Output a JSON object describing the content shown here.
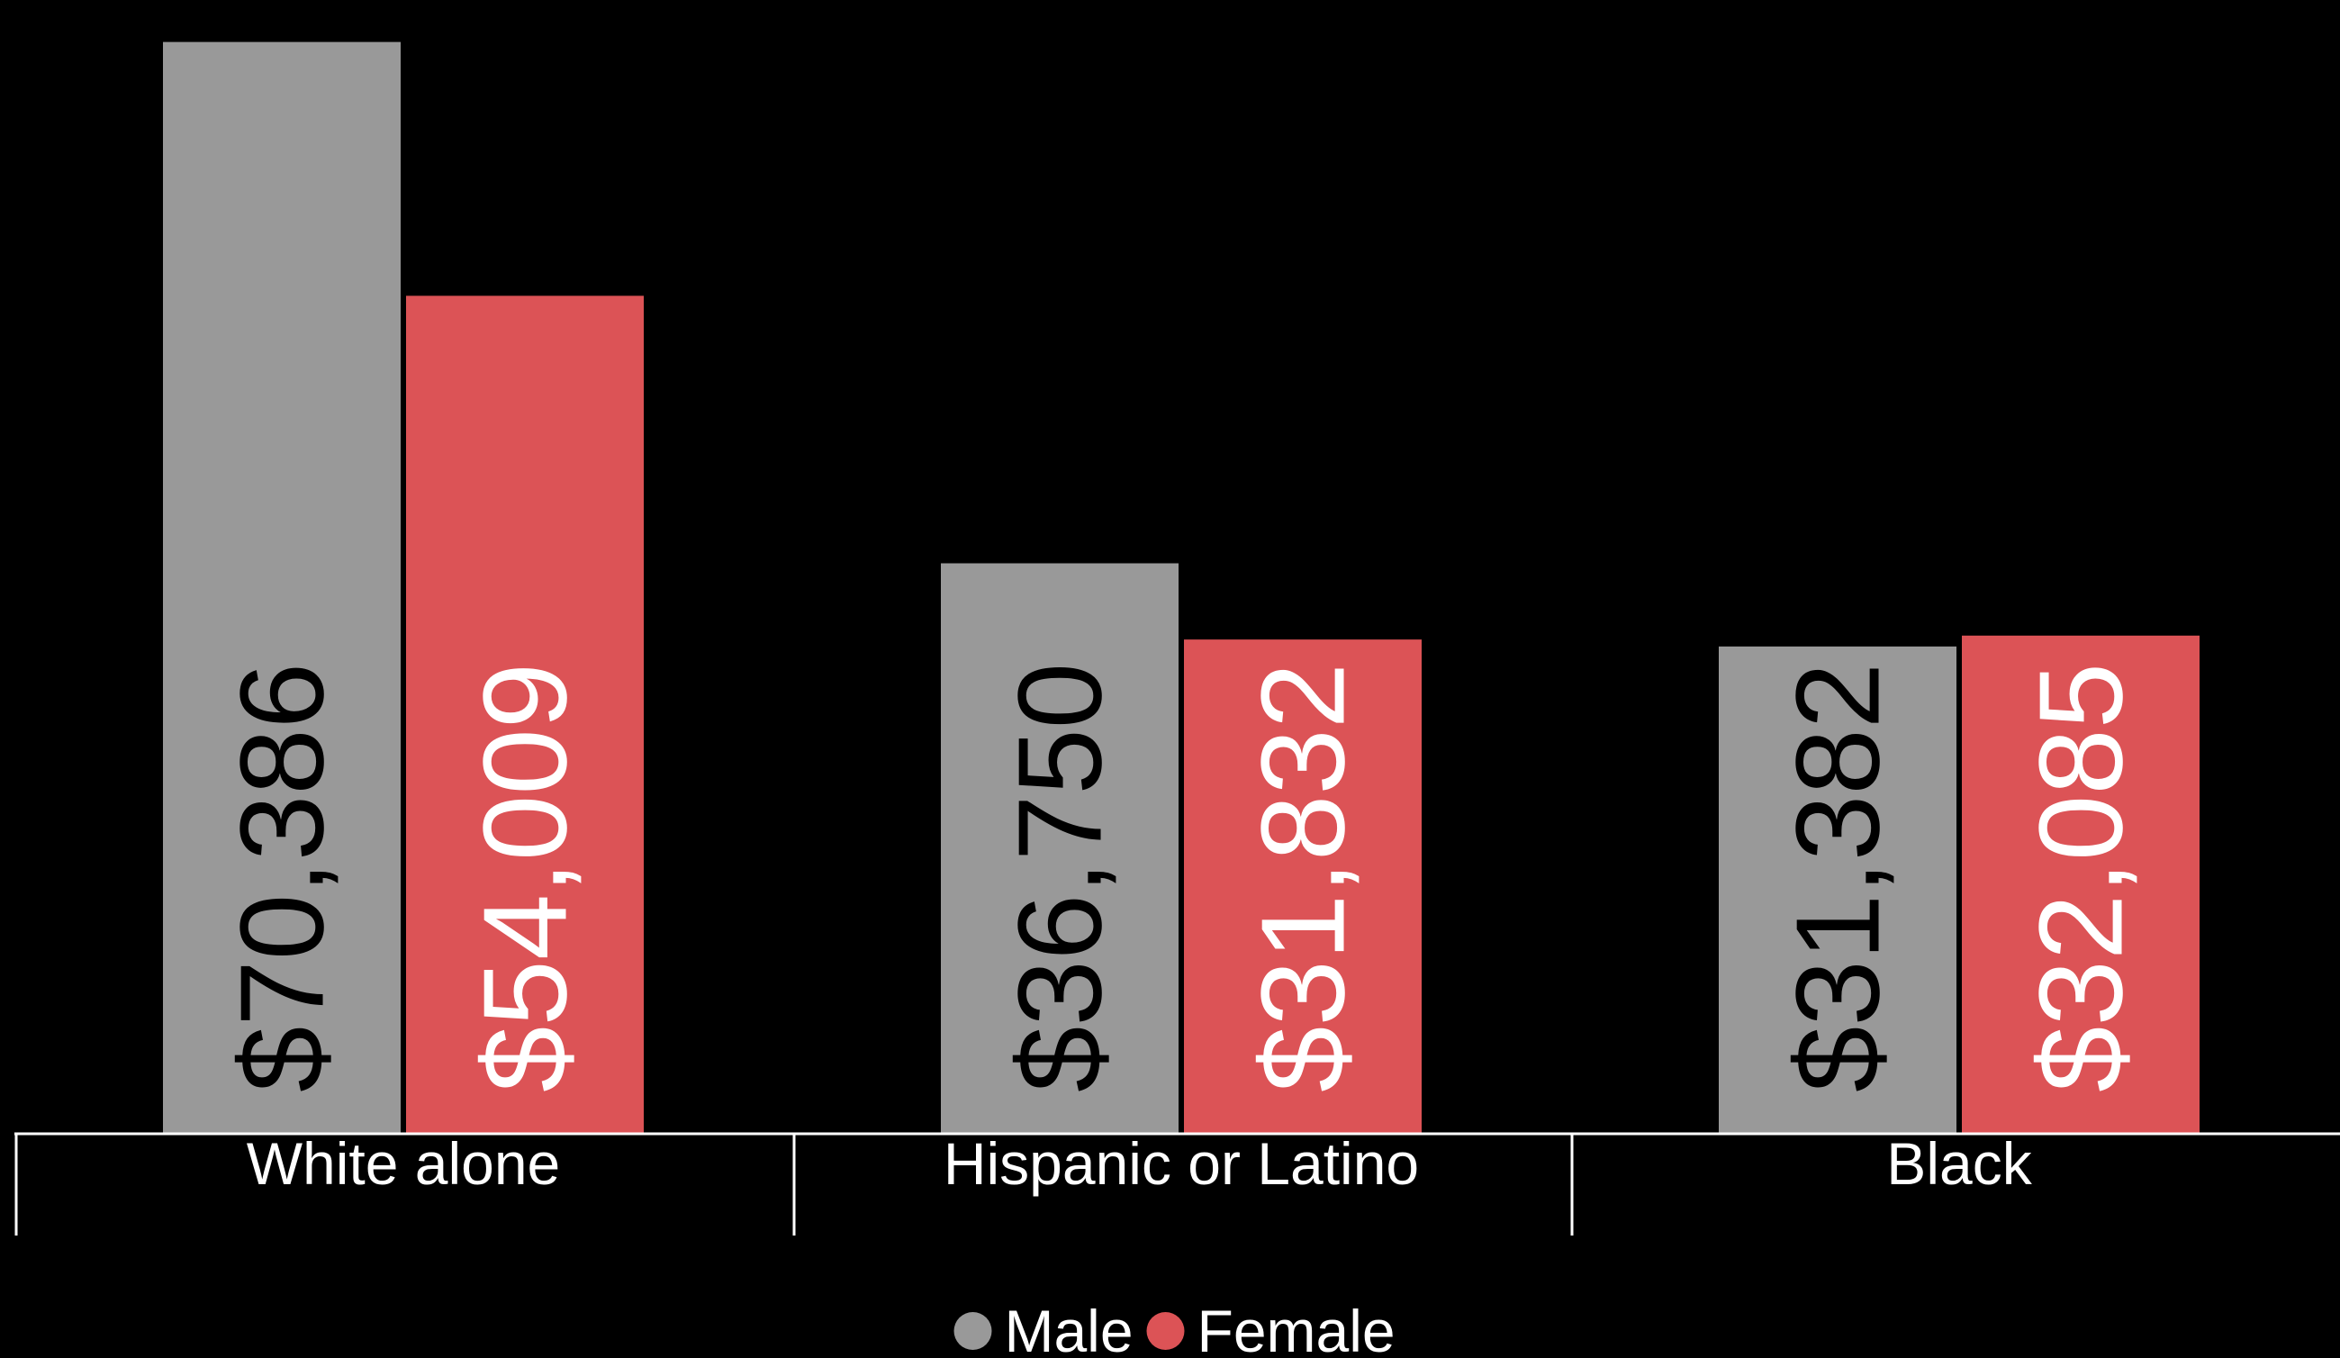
{
  "chart_data": {
    "type": "bar",
    "title": "",
    "xlabel": "",
    "ylabel": "",
    "categories": [
      "White alone",
      "Hispanic or Latino",
      "Black"
    ],
    "series": [
      {
        "name": "Male",
        "color": "#999999",
        "label_color": "#000000",
        "values": [
          70386,
          36750,
          31382
        ],
        "labels": [
          "$70,386",
          "$36,750",
          "$31,382"
        ]
      },
      {
        "name": "Female",
        "color": "#dc5356",
        "label_color": "#ffffff",
        "values": [
          54009,
          31832,
          32085
        ],
        "labels": [
          "$54,009",
          "$31,832",
          "$32,085"
        ]
      }
    ],
    "ylim": [
      0,
      71700
    ],
    "grid": false,
    "legend_position": "bottom-center",
    "background": "#000000",
    "axis_color": "#ffffff"
  }
}
